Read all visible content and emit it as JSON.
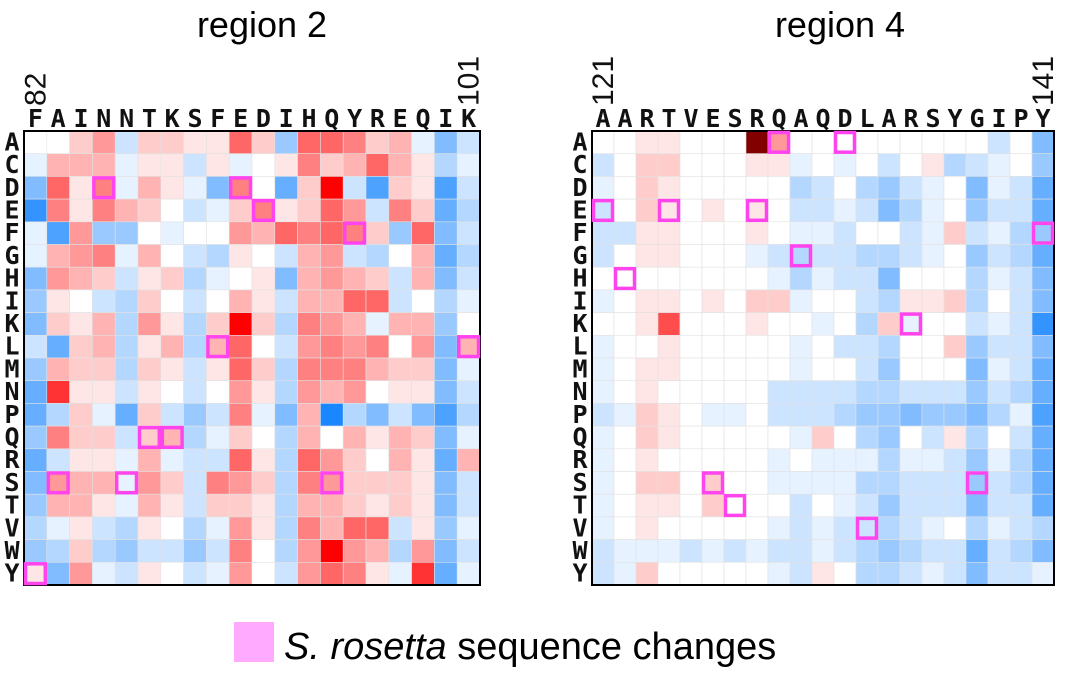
{
  "legend": {
    "italic_text": "S. rosetta",
    "text": " sequence changes",
    "swatch_color": "#ffaaff",
    "highlight_color": "#ff44ee"
  },
  "chart_data": [
    {
      "type": "heatmap",
      "title": "region 2",
      "x_start_label": "82",
      "x_end_label": "101",
      "sequence": [
        "F",
        "A",
        "I",
        "N",
        "N",
        "T",
        "K",
        "S",
        "F",
        "E",
        "D",
        "I",
        "H",
        "Q",
        "Y",
        "R",
        "E",
        "Q",
        "I",
        "K"
      ],
      "amino_acids": [
        "A",
        "C",
        "D",
        "E",
        "F",
        "G",
        "H",
        "I",
        "K",
        "L",
        "M",
        "N",
        "P",
        "Q",
        "R",
        "S",
        "T",
        "V",
        "W",
        "Y"
      ],
      "values": [
        [
          0,
          0,
          0.2,
          0.4,
          -0.2,
          0.2,
          0.2,
          0.1,
          0.1,
          0.6,
          0.2,
          -0.4,
          0.6,
          0.6,
          0.5,
          0.2,
          0.3,
          -0.1,
          -0.5,
          -0.2
        ],
        [
          -0.1,
          0.3,
          0.3,
          0.3,
          -0.1,
          0.1,
          0.1,
          -0.2,
          0.1,
          -0.1,
          0,
          0.1,
          0.5,
          0.2,
          0.3,
          0.6,
          0.3,
          0.1,
          -0.3,
          -0.1
        ],
        [
          -0.5,
          0.6,
          0.1,
          0.5,
          -0.1,
          0.3,
          0.1,
          -0.1,
          -0.5,
          0.5,
          0,
          -0.6,
          0.2,
          1,
          -0.2,
          -0.7,
          0.2,
          0.1,
          -0.7,
          -0.2
        ],
        [
          -0.8,
          0.5,
          0.1,
          0.5,
          0.3,
          0.2,
          0,
          -0.2,
          -0.1,
          0.2,
          0.5,
          0.1,
          0.2,
          0.6,
          0.4,
          -0.2,
          0.5,
          0.2,
          -0.6,
          -0.3
        ],
        [
          -0.1,
          -0.7,
          0.4,
          -0.4,
          -0.4,
          0,
          -0.1,
          0,
          0,
          0.4,
          0.3,
          0.6,
          0.5,
          0.6,
          0.5,
          0.2,
          -0.4,
          0.6,
          -0.5,
          -0.2
        ],
        [
          -0.1,
          0.3,
          0.4,
          0.5,
          -0.1,
          0.3,
          0,
          -0.2,
          -0.3,
          0.1,
          0,
          -0.2,
          0.3,
          0.4,
          -0.2,
          -0.3,
          0,
          0.3,
          -0.6,
          -0.3
        ],
        [
          -0.5,
          0.4,
          0.3,
          0.2,
          -0.2,
          0.1,
          0.2,
          -0.3,
          -0.1,
          0,
          0.1,
          -0.5,
          0.3,
          0.4,
          0.3,
          0.2,
          -0.2,
          0.3,
          -0.5,
          -0.2
        ],
        [
          -0.4,
          0.1,
          0,
          -0.2,
          -0.3,
          0.2,
          0,
          -0.2,
          0,
          0.3,
          0.1,
          -0.2,
          0.3,
          0.3,
          0.6,
          0.6,
          -0.2,
          0,
          -0.3,
          -0.1
        ],
        [
          -0.5,
          0.2,
          0.1,
          0.3,
          -0.3,
          0.4,
          0.1,
          -0.3,
          0.2,
          1,
          0.2,
          -0.3,
          0.5,
          0.4,
          0.3,
          -0.1,
          0.3,
          0.3,
          -0.4,
          0
        ],
        [
          -0.2,
          -0.6,
          0.2,
          0.3,
          -0.3,
          0.1,
          0.3,
          -0.3,
          0.3,
          0.6,
          0,
          -0.2,
          0.4,
          0.5,
          0.4,
          0.5,
          0,
          0.4,
          -0.5,
          0.3
        ],
        [
          -0.4,
          0.3,
          0.2,
          0.2,
          -0.3,
          0.2,
          0.1,
          -0.2,
          0.1,
          0.6,
          0.2,
          -0.3,
          0.5,
          0.5,
          0.5,
          0.3,
          0.2,
          0.2,
          -0.5,
          -0.1
        ],
        [
          -0.6,
          0.8,
          0.1,
          0.1,
          -0.2,
          0.1,
          0,
          -0.2,
          0,
          0.4,
          0.1,
          -0.3,
          0.4,
          0.3,
          0.4,
          0,
          0.1,
          0.1,
          -0.5,
          -0.2
        ],
        [
          -0.6,
          -0.3,
          0.2,
          -0.1,
          -0.6,
          0.2,
          -0.2,
          -0.4,
          -0.2,
          0.5,
          -0.1,
          -0.5,
          0.3,
          -0.9,
          -0.3,
          -0.5,
          -0.2,
          -0.5,
          -0.7,
          -0.3
        ],
        [
          -0.4,
          0.5,
          0.2,
          0.2,
          -0.2,
          0.2,
          0.3,
          -0.3,
          -0.1,
          0.2,
          0,
          -0.3,
          0.3,
          0,
          0.3,
          0.1,
          0.3,
          0.2,
          -0.5,
          -0.1
        ],
        [
          -0.6,
          -0.2,
          0.1,
          0.1,
          -0.1,
          0.3,
          -0.1,
          -0.2,
          -0.2,
          0.6,
          0.1,
          -0.3,
          0.6,
          0.4,
          0.2,
          0,
          0.3,
          0.1,
          -0.6,
          0.3
        ],
        [
          -0.5,
          0.4,
          0.3,
          0.3,
          -0.1,
          0.4,
          0.2,
          -0.2,
          0.5,
          0.4,
          0.2,
          -0.3,
          0.5,
          0.4,
          0.2,
          0.2,
          0.2,
          0.1,
          -0.5,
          -0.2
        ],
        [
          -0.4,
          0.3,
          0.3,
          0.1,
          -0.1,
          0.3,
          0.1,
          -0.2,
          0.2,
          0.2,
          0.1,
          -0.3,
          0.3,
          0.3,
          0.2,
          0.1,
          0.2,
          0.1,
          -0.5,
          -0.2
        ],
        [
          -0.3,
          -0.1,
          0.1,
          -0.2,
          -0.3,
          0.1,
          0,
          -0.3,
          -0.1,
          0.4,
          0.1,
          -0.3,
          0.5,
          0.3,
          0.6,
          0.6,
          -0.2,
          0.1,
          -0.4,
          -0.1
        ],
        [
          -0.4,
          -0.3,
          0.2,
          -0.3,
          -0.4,
          -0.2,
          -0.2,
          -0.4,
          -0.2,
          0.5,
          0,
          -0.3,
          0.4,
          1,
          0.4,
          0.3,
          -0.3,
          0.4,
          -0.5,
          -0.2
        ],
        [
          0.1,
          -0.5,
          0.4,
          -0.1,
          -0.2,
          0.1,
          0,
          -0.2,
          -0.1,
          0.4,
          0,
          -0.2,
          0.4,
          0.6,
          0.5,
          0.1,
          -0.1,
          0.8,
          -0.6,
          -0.1
        ]
      ],
      "highlights": [
        [
          3,
          2
        ],
        [
          9,
          2
        ],
        [
          10,
          3
        ],
        [
          14,
          4
        ],
        [
          8,
          9
        ],
        [
          19,
          9
        ],
        [
          5,
          13
        ],
        [
          6,
          13
        ],
        [
          1,
          15
        ],
        [
          4,
          15
        ],
        [
          13,
          15
        ],
        [
          0,
          19
        ]
      ]
    },
    {
      "type": "heatmap",
      "title": "region 4",
      "x_start_label": "121",
      "x_end_label": "141",
      "sequence": [
        "A",
        "A",
        "R",
        "T",
        "V",
        "E",
        "S",
        "R",
        "Q",
        "A",
        "Q",
        "D",
        "L",
        "A",
        "R",
        "S",
        "Y",
        "G",
        "I",
        "P",
        "Y"
      ],
      "amino_acids": [
        "A",
        "C",
        "D",
        "E",
        "F",
        "G",
        "H",
        "I",
        "K",
        "L",
        "M",
        "N",
        "P",
        "Q",
        "R",
        "S",
        "T",
        "V",
        "W",
        "Y"
      ],
      "values": [
        [
          0,
          0,
          0.1,
          0.1,
          0,
          0,
          0,
          1.4,
          0.4,
          0,
          0,
          0,
          0,
          0,
          0,
          0,
          0,
          0,
          -0.2,
          0,
          -0.5
        ],
        [
          -0.2,
          0,
          0.2,
          0.2,
          0,
          0,
          0,
          0.1,
          0.1,
          -0.1,
          0,
          -0.1,
          0,
          -0.2,
          0,
          0.1,
          -0.3,
          -0.2,
          -0.1,
          0,
          -0.4
        ],
        [
          -0.1,
          0,
          0.2,
          0.1,
          0,
          0,
          0,
          0,
          0,
          -0.3,
          -0.2,
          0,
          -0.3,
          -0.4,
          -0.2,
          -0.1,
          0,
          -0.5,
          -0.1,
          -0.2,
          -0.6
        ],
        [
          -0.2,
          0,
          0.2,
          0.1,
          0,
          0.1,
          0,
          0.1,
          0,
          -0.2,
          -0.2,
          -0.1,
          -0.2,
          -0.5,
          -0.3,
          -0.1,
          0,
          -0.4,
          -0.2,
          -0.2,
          -0.6
        ],
        [
          -0.2,
          -0.2,
          0.1,
          0.1,
          0,
          0,
          0,
          0.1,
          0,
          -0.1,
          -0.1,
          -0.2,
          0,
          0,
          -0.2,
          -0.1,
          0.2,
          -0.2,
          -0.1,
          -0.3,
          -0.4
        ],
        [
          -0.2,
          0,
          0.1,
          0.1,
          0,
          0,
          0,
          -0.1,
          -0.2,
          -0.3,
          -0.2,
          -0.2,
          -0.3,
          -0.3,
          -0.2,
          -0.1,
          0,
          -0.4,
          -0.2,
          -0.3,
          -0.6
        ],
        [
          0,
          0,
          0,
          0,
          0,
          0,
          0,
          0,
          -0.1,
          -0.3,
          -0.1,
          -0.2,
          -0.2,
          -0.5,
          0,
          0,
          0,
          -0.3,
          -0.1,
          -0.2,
          -0.5
        ],
        [
          -0.1,
          0,
          0.1,
          0.1,
          0,
          0.1,
          0,
          0.2,
          0.2,
          -0.1,
          0,
          0,
          -0.2,
          -0.3,
          0.1,
          0.1,
          0.2,
          -0.3,
          0,
          -0.2,
          -0.5
        ],
        [
          0,
          0,
          0.1,
          0.7,
          0,
          0,
          0,
          0.1,
          0,
          0,
          -0.1,
          0,
          -0.3,
          0.2,
          -0.1,
          0,
          0,
          -0.2,
          -0.1,
          -0.2,
          -0.8
        ],
        [
          -0.1,
          0,
          0,
          0.1,
          0,
          0,
          0,
          0,
          0,
          -0.1,
          0,
          -0.2,
          -0.2,
          -0.3,
          0,
          0,
          0.2,
          -0.4,
          -0.2,
          -0.2,
          -0.5
        ],
        [
          -0.1,
          0,
          0.1,
          0.1,
          0,
          0,
          0,
          0,
          0,
          -0.1,
          0,
          0,
          -0.2,
          -0.4,
          0,
          0,
          0,
          -0.5,
          -0.1,
          -0.2,
          -0.6
        ],
        [
          -0.1,
          0,
          0.1,
          0,
          0,
          0,
          0,
          0,
          -0.2,
          -0.2,
          -0.2,
          -0.2,
          -0.3,
          -0.3,
          -0.2,
          -0.2,
          -0.2,
          -0.4,
          -0.2,
          -0.3,
          -0.6
        ],
        [
          -0.2,
          -0.1,
          0.2,
          0.1,
          0,
          -0.1,
          -0.1,
          0,
          -0.2,
          -0.2,
          -0.2,
          -0.3,
          -0.4,
          -0.4,
          -0.5,
          -0.4,
          -0.4,
          -0.5,
          -0.3,
          -0.1,
          -0.7
        ],
        [
          -0.1,
          0,
          0.2,
          0.1,
          0,
          0,
          0,
          0,
          0,
          -0.1,
          0.2,
          0,
          -0.3,
          -0.4,
          0,
          -0.2,
          0.1,
          -0.3,
          0,
          -0.2,
          -0.6
        ],
        [
          -0.1,
          0,
          0.1,
          0,
          0,
          0,
          0,
          0,
          -0.1,
          0,
          -0.1,
          -0.1,
          -0.1,
          -0.3,
          -0.1,
          -0.1,
          -0.2,
          -0.4,
          -0.1,
          -0.3,
          -0.6
        ],
        [
          -0.1,
          0,
          0.2,
          0.2,
          0,
          0.2,
          0,
          0,
          -0.1,
          -0.1,
          -0.1,
          -0.1,
          -0.3,
          -0.3,
          -0.2,
          -0.2,
          -0.2,
          -0.4,
          -0.2,
          -0.3,
          -0.6
        ],
        [
          -0.1,
          0,
          0.1,
          0.1,
          0,
          0.2,
          0,
          0,
          0,
          -0.2,
          0,
          -0.1,
          -0.2,
          -0.4,
          -0.2,
          -0.2,
          -0.2,
          -0.5,
          -0.2,
          -0.2,
          -0.6
        ],
        [
          -0.1,
          0,
          0.1,
          0,
          0,
          0,
          0,
          0,
          -0.1,
          -0.2,
          -0.1,
          -0.2,
          -0.2,
          -0.3,
          -0.2,
          -0.1,
          0,
          -0.3,
          -0.1,
          -0.2,
          -0.3
        ],
        [
          -0.2,
          -0.1,
          -0.1,
          -0.1,
          -0.2,
          -0.1,
          -0.2,
          -0.1,
          -0.2,
          -0.2,
          -0.1,
          -0.2,
          -0.3,
          -0.4,
          -0.3,
          -0.2,
          -0.2,
          -0.6,
          -0.2,
          -0.3,
          -0.5
        ],
        [
          -0.2,
          -0.1,
          0.2,
          0,
          0,
          0,
          0,
          0,
          -0.1,
          -0.2,
          0.1,
          0,
          -0.3,
          -0.3,
          -0.2,
          -0.1,
          -0.2,
          -0.5,
          -0.2,
          -0.2,
          -0.1
        ]
      ],
      "highlights": [
        [
          8,
          0
        ],
        [
          11,
          0
        ],
        [
          0,
          3
        ],
        [
          3,
          3
        ],
        [
          7,
          3
        ],
        [
          20,
          4
        ],
        [
          9,
          5
        ],
        [
          1,
          6
        ],
        [
          14,
          8
        ],
        [
          5,
          15
        ],
        [
          17,
          15
        ],
        [
          6,
          16
        ],
        [
          12,
          17
        ]
      ]
    }
  ]
}
